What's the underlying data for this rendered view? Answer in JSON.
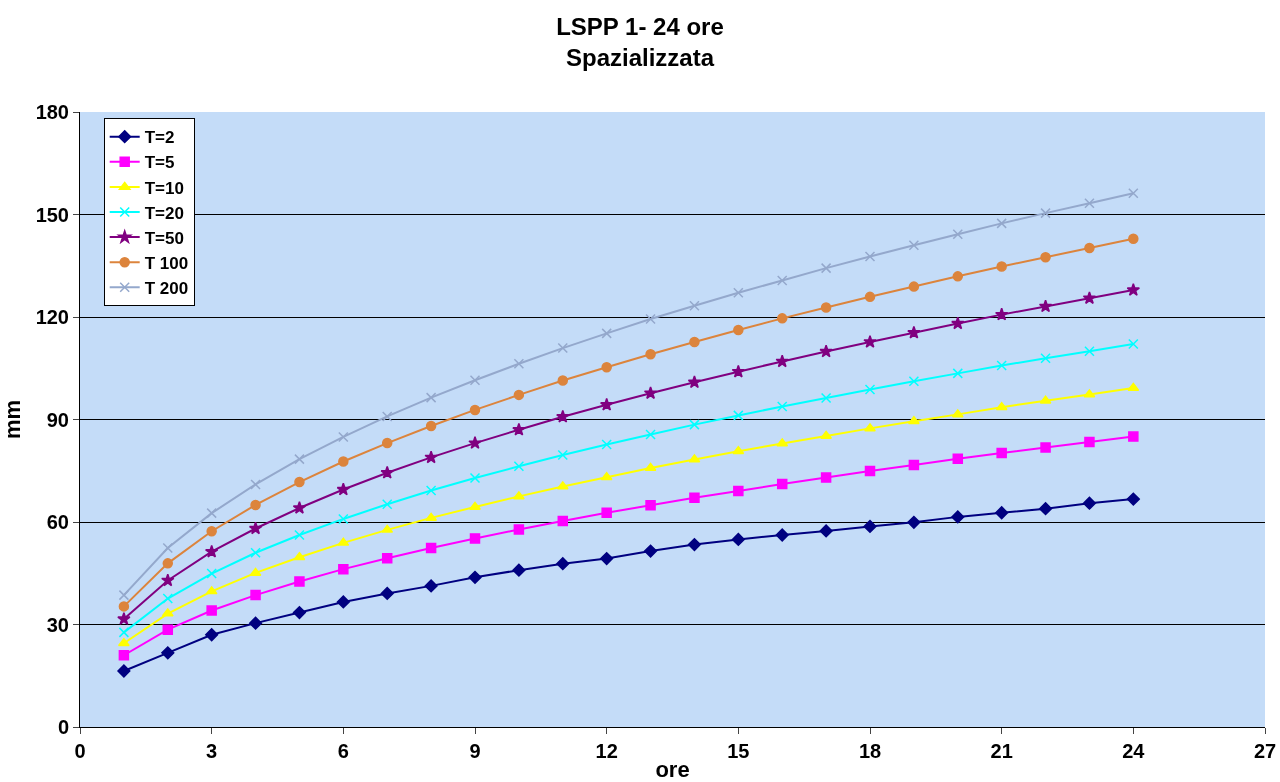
{
  "chart_data": {
    "type": "line",
    "title": "LSPP 1- 24 ore\nSpazializzata",
    "xlabel": "ore",
    "ylabel": "mm",
    "x": [
      1,
      2,
      3,
      4,
      5,
      6,
      7,
      8,
      9,
      10,
      11,
      12,
      13,
      14,
      15,
      16,
      17,
      18,
      19,
      20,
      21,
      22,
      23,
      24
    ],
    "series": [
      {
        "name": "T=2",
        "color": "#000080",
        "marker": "diamond",
        "values": [
          16.4,
          21.7,
          27.0,
          30.4,
          33.5,
          36.6,
          39.1,
          41.3,
          43.8,
          45.9,
          47.8,
          49.3,
          51.5,
          53.4,
          54.9,
          56.2,
          57.4,
          58.7,
          59.9,
          61.5,
          62.7,
          63.9,
          65.5,
          66.7
        ]
      },
      {
        "name": "T=5",
        "color": "#ff00ff",
        "marker": "square",
        "values": [
          21,
          28.5,
          34.1,
          38.6,
          42.6,
          46.2,
          49.4,
          52.4,
          55.2,
          57.8,
          60.3,
          62.7,
          64.9,
          67.1,
          69.1,
          71.1,
          73.0,
          74.9,
          76.7,
          78.5,
          80.2,
          81.8,
          83.4,
          85.0
        ]
      },
      {
        "name": "T=10",
        "color": "#ffff00",
        "marker": "triangle",
        "values": [
          24.5,
          33.2,
          39.7,
          45.1,
          49.7,
          53.9,
          57.7,
          61.2,
          64.4,
          67.5,
          70.4,
          73.1,
          75.8,
          78.3,
          80.7,
          83.0,
          85.2,
          87.4,
          89.5,
          91.5,
          93.6,
          95.5,
          97.3,
          99.2
        ]
      },
      {
        "name": "T=20",
        "color": "#00ffff",
        "marker": "cross",
        "values": [
          27.7,
          37.6,
          44.9,
          51.0,
          56.2,
          60.9,
          65.2,
          69.2,
          72.9,
          76.3,
          79.6,
          82.7,
          85.6,
          88.5,
          91.2,
          93.8,
          96.3,
          98.8,
          101.2,
          103.5,
          105.8,
          107.9,
          110.0,
          112.1
        ]
      },
      {
        "name": "T=50",
        "color": "#800080",
        "marker": "star",
        "values": [
          31.6,
          42.9,
          51.3,
          58.1,
          64.1,
          69.5,
          74.4,
          78.9,
          83.1,
          87.0,
          90.8,
          94.3,
          97.7,
          100.9,
          104.0,
          107.0,
          109.9,
          112.7,
          115.4,
          118.1,
          120.7,
          123.1,
          125.5,
          127.9
        ]
      },
      {
        "name": "T 100",
        "color": "#dc843c",
        "marker": "circle",
        "values": [
          35.3,
          47.9,
          57.3,
          65.0,
          71.7,
          77.7,
          83.1,
          88.1,
          92.8,
          97.2,
          101.4,
          105.3,
          109.1,
          112.7,
          116.2,
          119.6,
          122.8,
          125.9,
          128.9,
          131.9,
          134.8,
          137.5,
          140.2,
          142.9
        ]
      },
      {
        "name": "T 200",
        "color": "#94a8cc",
        "marker": "cross",
        "values": [
          38.6,
          52.4,
          62.6,
          71.0,
          78.4,
          84.9,
          90.9,
          96.4,
          101.5,
          106.3,
          110.9,
          115.2,
          119.4,
          123.3,
          127.1,
          130.7,
          134.3,
          137.7,
          141.0,
          144.2,
          147.4,
          150.4,
          153.3,
          156.2
        ]
      }
    ],
    "xlim": [
      0,
      27
    ],
    "xticks": [
      0,
      3,
      6,
      9,
      12,
      15,
      18,
      21,
      24,
      27
    ],
    "ylim": [
      0,
      180
    ],
    "yticks": [
      0,
      30,
      60,
      90,
      120,
      150,
      180
    ],
    "grid": "y",
    "legend": "top left",
    "line_style": "solid"
  }
}
